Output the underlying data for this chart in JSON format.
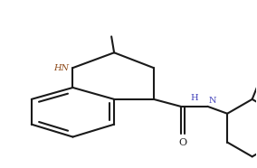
{
  "bg_color": "#ffffff",
  "line_color": "#1a1a1a",
  "line_width": 1.5,
  "figsize": [
    2.84,
    1.86
  ],
  "dpi": 100,
  "n_color": "#8b4513",
  "hn_color": "#4444bb",
  "o_color": "#1a1a1a",
  "xlim": [
    0,
    284
  ],
  "ylim": [
    0,
    186
  ]
}
